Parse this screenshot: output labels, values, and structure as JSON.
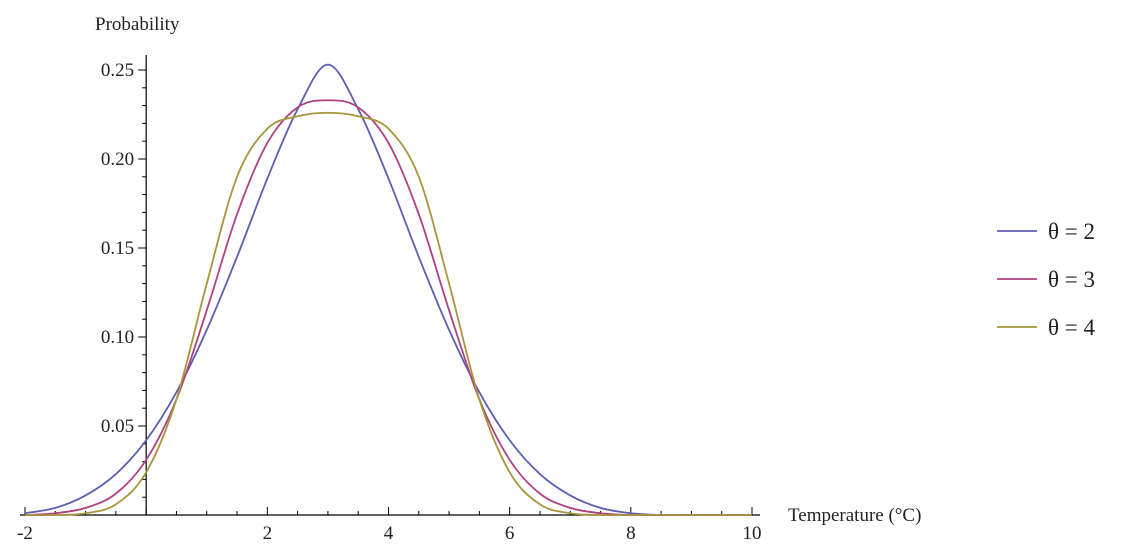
{
  "chart_data": {
    "type": "line",
    "title": "",
    "xlabel": "Temperature (°C)",
    "ylabel": "Probability",
    "xlim": [
      -2,
      10
    ],
    "ylim": [
      0,
      0.25
    ],
    "x_ticks": [
      -2,
      2,
      4,
      6,
      8,
      10
    ],
    "x_tick_labels": [
      "-2",
      "2",
      "4",
      "6",
      "8",
      "10"
    ],
    "y_ticks": [
      0.05,
      0.1,
      0.15,
      0.2,
      0.25
    ],
    "y_tick_labels": [
      "0.05",
      "0.10",
      "0.15",
      "0.20",
      "0.25"
    ],
    "grid": false,
    "legend_position": "right",
    "x": [
      -2,
      -1.5,
      -1,
      -0.5,
      0,
      0.5,
      1,
      1.5,
      2,
      2.5,
      3,
      3.5,
      4,
      4.5,
      5,
      5.5,
      6,
      6.5,
      7,
      7.5,
      8,
      8.5,
      9,
      9.5,
      10
    ],
    "series": [
      {
        "name": "θ = 2",
        "color": "#5b5fb0",
        "values": [
          0.001,
          0.004,
          0.011,
          0.023,
          0.042,
          0.069,
          0.104,
          0.145,
          0.189,
          0.228,
          0.253,
          0.228,
          0.189,
          0.145,
          0.104,
          0.069,
          0.042,
          0.023,
          0.011,
          0.004,
          0.001,
          0.0,
          0.0,
          0.0,
          0.0
        ]
      },
      {
        "name": "θ = 3",
        "color": "#b0417f",
        "values": [
          0.0,
          0.001,
          0.004,
          0.012,
          0.031,
          0.065,
          0.115,
          0.169,
          0.209,
          0.229,
          0.233,
          0.229,
          0.209,
          0.169,
          0.115,
          0.065,
          0.031,
          0.012,
          0.004,
          0.001,
          0.0,
          0.0,
          0.0,
          0.0,
          0.0
        ]
      },
      {
        "name": "θ = 4",
        "color": "#a9953c",
        "values": [
          0.0,
          0.0,
          0.001,
          0.006,
          0.024,
          0.065,
          0.13,
          0.19,
          0.217,
          0.224,
          0.226,
          0.224,
          0.217,
          0.19,
          0.13,
          0.065,
          0.024,
          0.006,
          0.001,
          0.0,
          0.0,
          0.0,
          0.0,
          0.0,
          0.0
        ]
      }
    ]
  }
}
